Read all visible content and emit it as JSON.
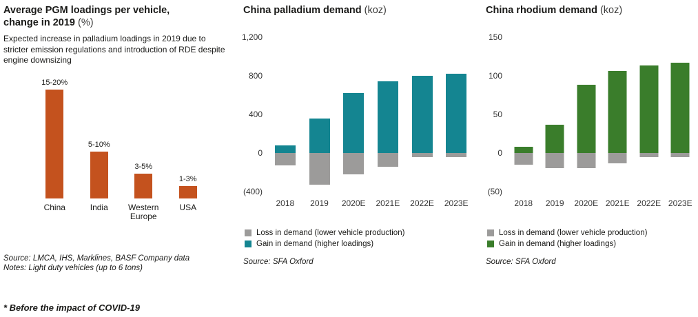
{
  "footnote": "* Before the impact of COVID-19",
  "chart_data": [
    {
      "type": "bar",
      "title": "Average PGM loadings per vehicle, change in 2019 (%)",
      "title_bold_line1": "Average PGM loadings per vehicle,",
      "title_bold_line2": "change in 2019",
      "title_unit": "(%)",
      "description": "Expected increase in palladium loadings in 2019 due to stricter emission regulations and introduction of RDE despite engine downsizing",
      "categories": [
        "China",
        "India",
        "Western Europe",
        "USA"
      ],
      "values": [
        17.5,
        7.5,
        4,
        2
      ],
      "value_labels": [
        "15-20%",
        "5-10%",
        "3-5%",
        "1-3%"
      ],
      "bar_color": "#c4521e",
      "xlabel": "",
      "ylabel": "",
      "ylim": [
        0,
        20
      ],
      "grid": false,
      "legend_position": "none",
      "source": "Source: LMCA, IHS, Marklines, BASF Company data",
      "notes": "Notes: Light duty vehicles (up to 6 tons)"
    },
    {
      "type": "bar",
      "stacked": true,
      "title": "China palladium demand (koz)",
      "title_bold": "China palladium demand",
      "title_unit": "(koz)",
      "categories": [
        "2018",
        "2019",
        "2020E",
        "2021E",
        "2022E",
        "2023E"
      ],
      "series": [
        {
          "name": "Loss in demand (lower vehicle production)",
          "color": "#9c9b9a",
          "values": [
            -130,
            -330,
            -220,
            -140,
            -40,
            -40
          ]
        },
        {
          "name": "Gain in demand (higher loadings)",
          "color": "#148591",
          "values": [
            80,
            360,
            620,
            740,
            800,
            820
          ]
        }
      ],
      "xlabel": "",
      "ylabel": "",
      "ylim": [
        -400,
        1200
      ],
      "ytick_values": [
        1200,
        800,
        400,
        0,
        -400
      ],
      "ytick_labels": [
        "1,200",
        "800",
        "400",
        "0",
        "(400)"
      ],
      "grid": false,
      "legend_position": "bottom",
      "source": "Source: SFA Oxford"
    },
    {
      "type": "bar",
      "stacked": true,
      "title": "China rhodium demand (koz)",
      "title_bold": "China rhodium demand",
      "title_unit": "(koz)",
      "categories": [
        "2018",
        "2019",
        "2020E",
        "2021E",
        "2022E",
        "2023E"
      ],
      "series": [
        {
          "name": "Loss in demand (lower vehicle production)",
          "color": "#9c9b9a",
          "values": [
            -15,
            -20,
            -20,
            -13,
            -5,
            -5
          ]
        },
        {
          "name": "Gain in demand (higher loadings)",
          "color": "#3a7d2b",
          "values": [
            8,
            37,
            88,
            106,
            113,
            117
          ]
        }
      ],
      "xlabel": "",
      "ylabel": "",
      "ylim": [
        -50,
        150
      ],
      "ytick_values": [
        150,
        100,
        50,
        0,
        -50
      ],
      "ytick_labels": [
        "150",
        "100",
        "50",
        "0",
        "(50)"
      ],
      "grid": false,
      "legend_position": "bottom",
      "source": "Source: SFA Oxford"
    }
  ]
}
